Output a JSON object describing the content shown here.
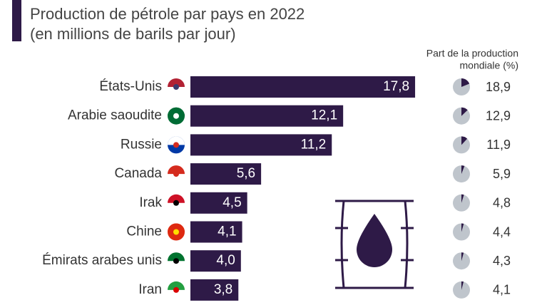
{
  "chart_data": {
    "type": "bar",
    "title": "Production de pétrole par pays en 2022",
    "subtitle": "(en millions de barils par jour)",
    "categories": [
      "États-Unis",
      "Arabie saoudite",
      "Russie",
      "Canada",
      "Irak",
      "Chine",
      "Émirats arabes unis",
      "Iran"
    ],
    "values": [
      17.8,
      12.1,
      11.2,
      5.6,
      4.5,
      4.1,
      4.0,
      3.8
    ],
    "value_labels": [
      "17,8",
      "12,1",
      "11,2",
      "5,6",
      "4,5",
      "4,1",
      "4,0",
      "3,8"
    ],
    "color": "#2e1a47",
    "share": {
      "title": [
        "Part de la production",
        "mondiale (%)"
      ],
      "values": [
        18.9,
        12.9,
        11.9,
        5.9,
        4.8,
        4.4,
        4.3,
        4.1
      ],
      "value_labels": [
        "18,9",
        "12,9",
        "11,9",
        "5,9",
        "4,8",
        "4,4",
        "4,3",
        "4,1"
      ],
      "color": "#2e1a47",
      "background": "#bfc5cc"
    }
  }
}
